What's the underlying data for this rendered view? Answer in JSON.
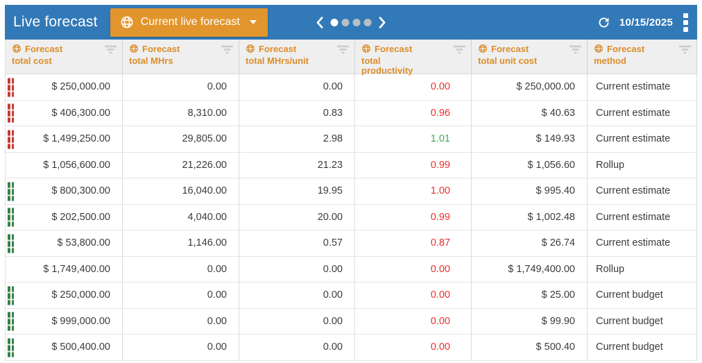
{
  "toolbar": {
    "title": "Live forecast",
    "scenario_button_label": "Current live forecast",
    "date": "10/15/2025"
  },
  "pagination": {
    "dot_count": 4,
    "active_index": 0
  },
  "colors": {
    "topbar_blue": "#3279b8",
    "accent_orange": "#e2952d",
    "header_text_orange": "#dc8d2a",
    "negative_red": "#ec2f2d",
    "positive_green": "#3fa75c",
    "marker_red": "#c43b34",
    "marker_green": "#35804a"
  },
  "table": {
    "columns": [
      {
        "id": "total_cost",
        "label": "Forecast\ntotal cost"
      },
      {
        "id": "total_mhrs",
        "label": "Forecast\ntotal MHrs"
      },
      {
        "id": "total_mhrs_unit",
        "label": "Forecast\ntotal MHrs/unit"
      },
      {
        "id": "total_productivity",
        "label": "Forecast\ntotal\nproductivity"
      },
      {
        "id": "total_unit_cost",
        "label": "Forecast\ntotal unit cost"
      },
      {
        "id": "method",
        "label": "Forecast\nmethod"
      }
    ],
    "rows": [
      {
        "marker": "red",
        "total_cost": "$ 250,000.00",
        "total_mhrs": "0.00",
        "total_mhrs_unit": "0.00",
        "total_productivity": "0.00",
        "productivity_color": "red",
        "total_unit_cost": "$ 250,000.00",
        "method": "Current estimate"
      },
      {
        "marker": "red",
        "total_cost": "$ 406,300.00",
        "total_mhrs": "8,310.00",
        "total_mhrs_unit": "0.83",
        "total_productivity": "0.96",
        "productivity_color": "red",
        "total_unit_cost": "$ 40.63",
        "method": "Current estimate"
      },
      {
        "marker": "red",
        "total_cost": "$ 1,499,250.00",
        "total_mhrs": "29,805.00",
        "total_mhrs_unit": "2.98",
        "total_productivity": "1.01",
        "productivity_color": "green",
        "total_unit_cost": "$ 149.93",
        "method": "Current estimate"
      },
      {
        "marker": "none",
        "total_cost": "$ 1,056,600.00",
        "total_mhrs": "21,226.00",
        "total_mhrs_unit": "21.23",
        "total_productivity": "0.99",
        "productivity_color": "red",
        "total_unit_cost": "$ 1,056.60",
        "method": "Rollup"
      },
      {
        "marker": "green",
        "total_cost": "$ 800,300.00",
        "total_mhrs": "16,040.00",
        "total_mhrs_unit": "19.95",
        "total_productivity": "1.00",
        "productivity_color": "red",
        "total_unit_cost": "$ 995.40",
        "method": "Current estimate"
      },
      {
        "marker": "green",
        "total_cost": "$ 202,500.00",
        "total_mhrs": "4,040.00",
        "total_mhrs_unit": "20.00",
        "total_productivity": "0.99",
        "productivity_color": "red",
        "total_unit_cost": "$ 1,002.48",
        "method": "Current estimate"
      },
      {
        "marker": "green",
        "total_cost": "$ 53,800.00",
        "total_mhrs": "1,146.00",
        "total_mhrs_unit": "0.57",
        "total_productivity": "0.87",
        "productivity_color": "red",
        "total_unit_cost": "$ 26.74",
        "method": "Current estimate"
      },
      {
        "marker": "none",
        "total_cost": "$ 1,749,400.00",
        "total_mhrs": "0.00",
        "total_mhrs_unit": "0.00",
        "total_productivity": "0.00",
        "productivity_color": "red",
        "total_unit_cost": "$ 1,749,400.00",
        "method": "Rollup"
      },
      {
        "marker": "green",
        "total_cost": "$ 250,000.00",
        "total_mhrs": "0.00",
        "total_mhrs_unit": "0.00",
        "total_productivity": "0.00",
        "productivity_color": "red",
        "total_unit_cost": "$ 25.00",
        "method": "Current budget"
      },
      {
        "marker": "green",
        "total_cost": "$ 999,000.00",
        "total_mhrs": "0.00",
        "total_mhrs_unit": "0.00",
        "total_productivity": "0.00",
        "productivity_color": "red",
        "total_unit_cost": "$ 99.90",
        "method": "Current budget"
      },
      {
        "marker": "green",
        "total_cost": "$ 500,400.00",
        "total_mhrs": "0.00",
        "total_mhrs_unit": "0.00",
        "total_productivity": "0.00",
        "productivity_color": "red",
        "total_unit_cost": "$ 500.40",
        "method": "Current budget"
      }
    ]
  }
}
